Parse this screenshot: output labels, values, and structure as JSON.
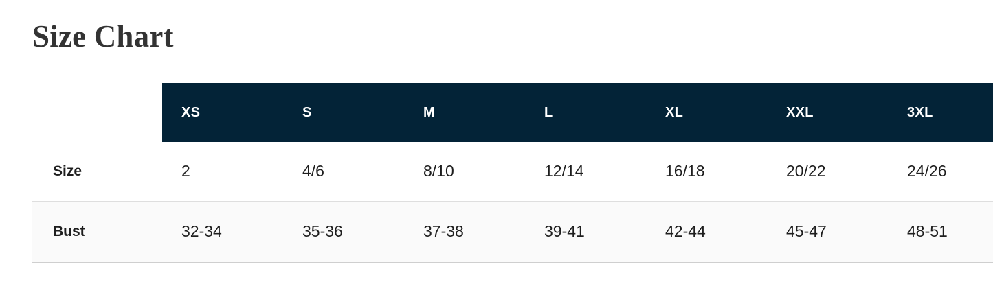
{
  "page": {
    "title": "Size Chart"
  },
  "table": {
    "columns": [
      "XS",
      "S",
      "M",
      "L",
      "XL",
      "XXL",
      "3XL"
    ],
    "rows": [
      {
        "label": "Size",
        "values": [
          "2",
          "4/6",
          "8/10",
          "12/14",
          "16/18",
          "20/22",
          "24/26"
        ]
      },
      {
        "label": "Bust",
        "values": [
          "32-34",
          "35-36",
          "37-38",
          "39-41",
          "42-44",
          "45-47",
          "48-51"
        ]
      }
    ]
  },
  "chart_data": {
    "type": "table",
    "title": "Size Chart",
    "columns": [
      "XS",
      "S",
      "M",
      "L",
      "XL",
      "XXL",
      "3XL"
    ],
    "row_headers": [
      "Size",
      "Bust"
    ],
    "cells": [
      [
        "2",
        "4/6",
        "8/10",
        "12/14",
        "16/18",
        "20/22",
        "24/26"
      ],
      [
        "32-34",
        "35-36",
        "37-38",
        "39-41",
        "42-44",
        "45-47",
        "48-51"
      ]
    ]
  },
  "colors": {
    "header_bg": "#032337",
    "header_text": "#ffffff",
    "title_text": "#333333",
    "body_text": "#1e1e1e",
    "alt_row_bg": "#fafafa",
    "border": "#dedede"
  }
}
